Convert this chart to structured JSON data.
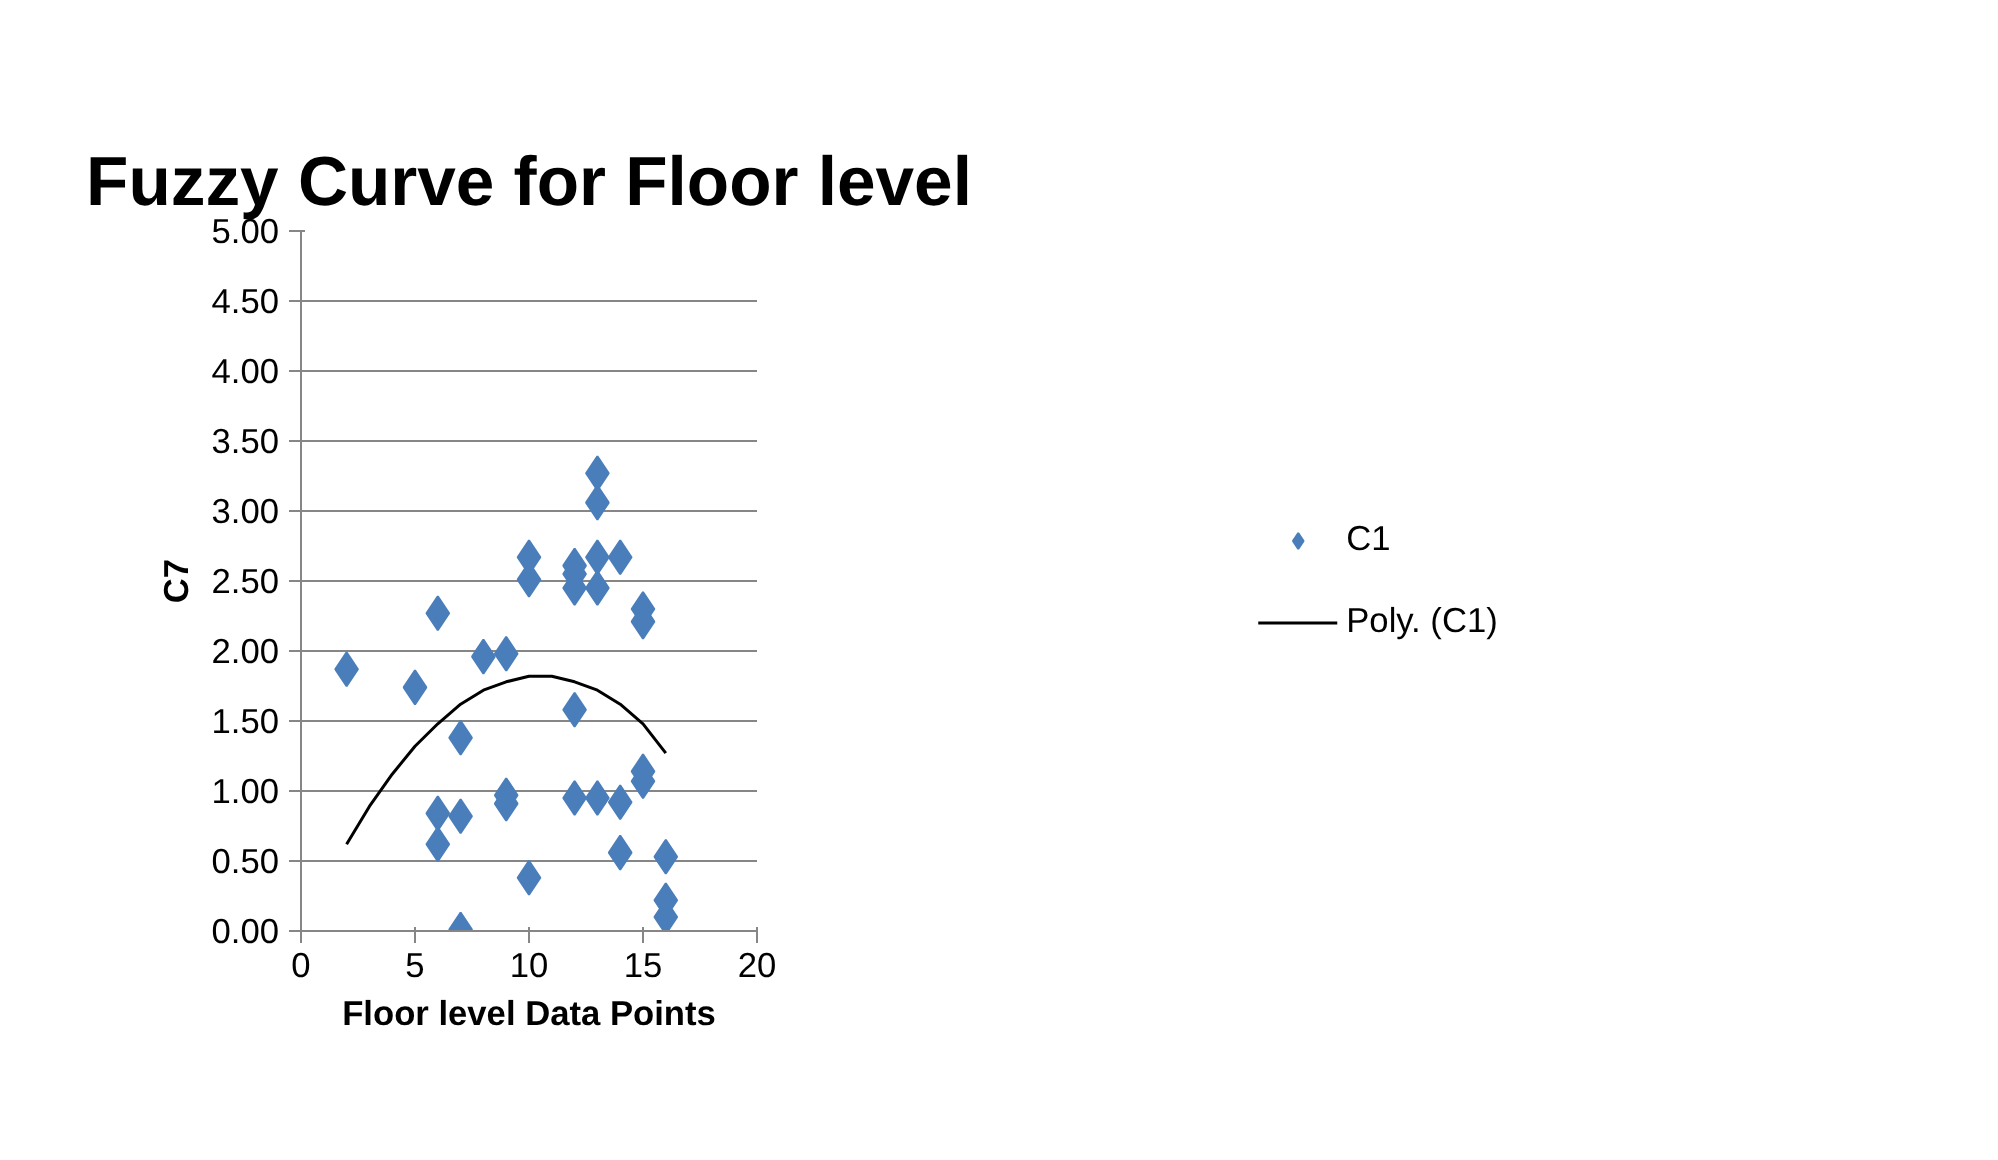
{
  "chart_data": {
    "type": "scatter",
    "title": "Fuzzy Curve for Floor level",
    "xlabel": "Floor level Data Points",
    "ylabel": "C7",
    "xlim": [
      0,
      20
    ],
    "xticks": [
      0,
      5,
      10,
      15,
      20
    ],
    "ylim": [
      0,
      5
    ],
    "yticks": [
      {
        "value": 0,
        "label": "0.00"
      },
      {
        "value": 0.5,
        "label": "0.50"
      },
      {
        "value": 1,
        "label": "1.00"
      },
      {
        "value": 1.5,
        "label": "1.50"
      },
      {
        "value": 2,
        "label": "2.00"
      },
      {
        "value": 2.5,
        "label": "2.50"
      },
      {
        "value": 3,
        "label": "3.00"
      },
      {
        "value": 3.5,
        "label": "3.50"
      },
      {
        "value": 4,
        "label": "4.00"
      },
      {
        "value": 4.5,
        "label": "4.50"
      },
      {
        "value": 5,
        "label": "5.00"
      }
    ],
    "grid": "y",
    "legend": "right",
    "marker": "diamond",
    "series": [
      {
        "name": "C1",
        "type": "scatter",
        "color": "#4a7ebb",
        "x": [
          2,
          5,
          6,
          6,
          6,
          7,
          7,
          7,
          8,
          9,
          9,
          9,
          10,
          10,
          10,
          12,
          12,
          12,
          12,
          12,
          13,
          13,
          13,
          13,
          13,
          14,
          14,
          14,
          15,
          15,
          15,
          15,
          16,
          16,
          16
        ],
        "values": [
          1.87,
          1.74,
          2.27,
          0.84,
          0.62,
          1.38,
          0.82,
          0.01,
          1.96,
          1.98,
          0.97,
          0.91,
          2.67,
          2.51,
          0.38,
          2.61,
          2.55,
          2.45,
          1.58,
          0.95,
          3.27,
          3.06,
          2.67,
          2.45,
          0.95,
          2.67,
          0.92,
          0.56,
          2.3,
          2.21,
          1.14,
          1.07,
          0.53,
          0.22,
          0.1
        ]
      },
      {
        "name": "Poly. (C1)",
        "type": "line",
        "color": "#000000",
        "line_style": "solid",
        "marker": "none",
        "x": [
          2,
          3,
          4,
          5,
          6,
          7,
          8,
          9,
          10,
          11,
          12,
          13,
          14,
          15,
          16
        ],
        "values": [
          0.62,
          0.89,
          1.12,
          1.32,
          1.48,
          1.62,
          1.72,
          1.78,
          1.82,
          1.82,
          1.78,
          1.72,
          1.62,
          1.48,
          1.27
        ]
      }
    ]
  }
}
